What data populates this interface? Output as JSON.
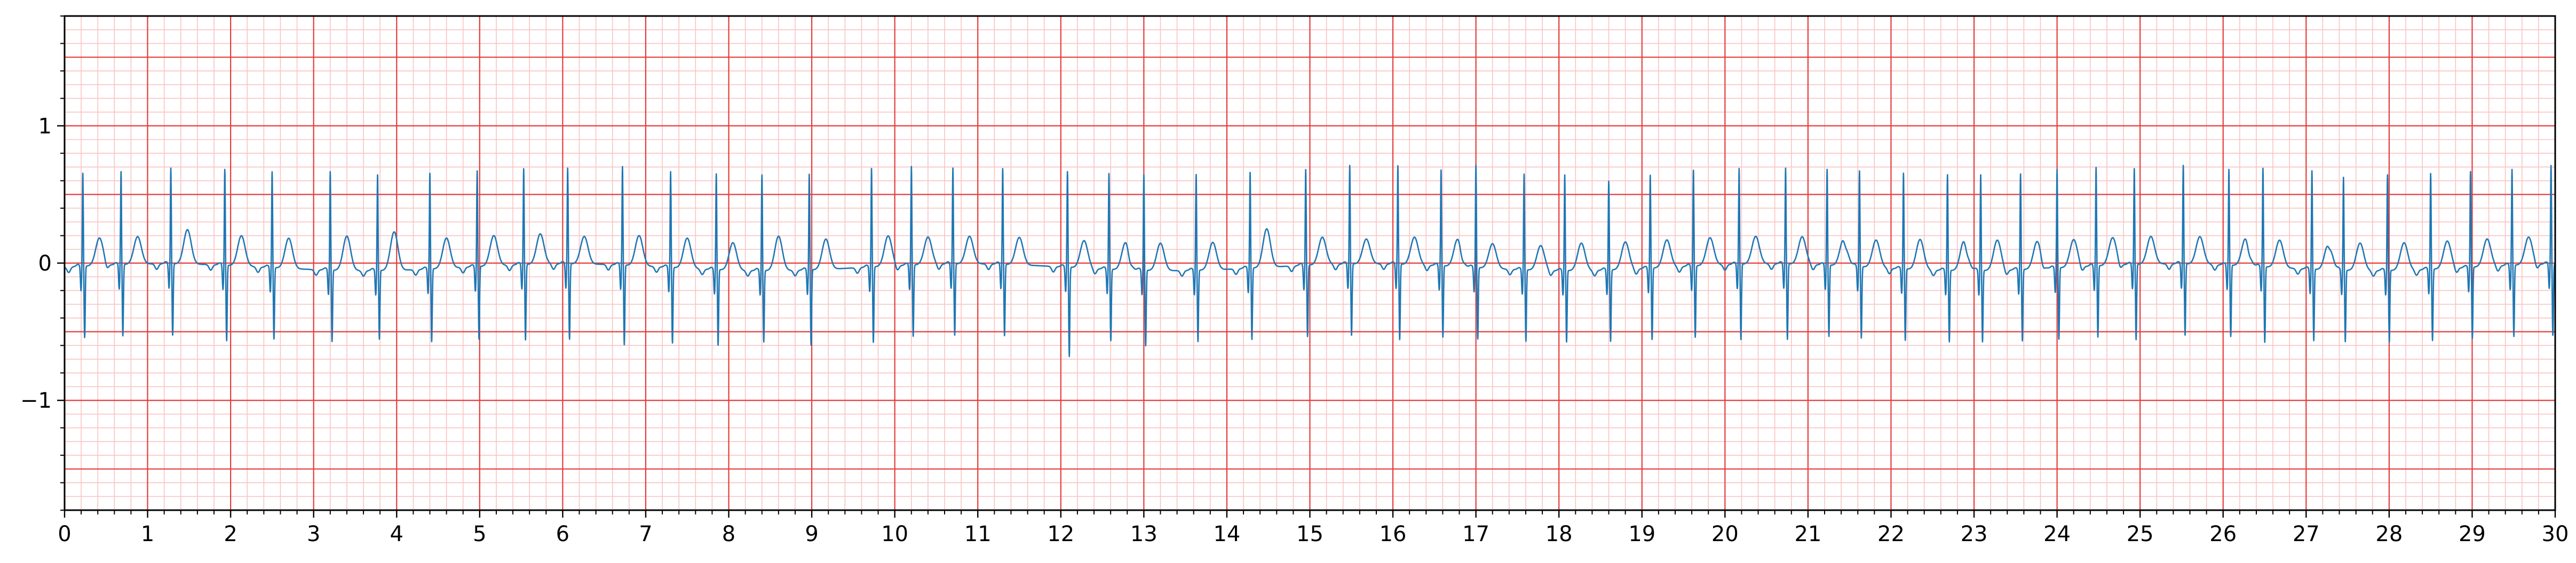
{
  "chart_data": {
    "type": "line",
    "title": "",
    "xlabel": "",
    "ylabel": "",
    "xlim": [
      0,
      30
    ],
    "ylim": [
      -1.8,
      1.8
    ],
    "x_ticks": [
      "0",
      "1",
      "2",
      "3",
      "4",
      "5",
      "6",
      "7",
      "8",
      "9",
      "10",
      "11",
      "12",
      "13",
      "14",
      "15",
      "16",
      "17",
      "18",
      "19",
      "20",
      "21",
      "22",
      "23",
      "24",
      "25",
      "26",
      "27",
      "28",
      "29",
      "30"
    ],
    "y_ticks": [
      {
        "value": 1,
        "label": "1"
      },
      {
        "value": 0,
        "label": "0"
      },
      {
        "value": -1,
        "label": "−1"
      }
    ],
    "grid": {
      "major_x": 1,
      "minor_x": 0.2,
      "major_y": 0.5,
      "minor_y": 0.1
    },
    "colors": {
      "major_grid": "#e63b3b",
      "minor_grid": "#f9c3c3",
      "trace": "#1f77b4"
    },
    "series": [
      {
        "beat_times": [
          0.22,
          0.68,
          1.28,
          1.93,
          2.5,
          3.2,
          3.77,
          4.4,
          4.97,
          5.53,
          6.06,
          6.72,
          7.3,
          7.85,
          8.4,
          8.97,
          9.72,
          10.2,
          10.7,
          11.3,
          12.08,
          12.58,
          13.0,
          13.63,
          14.28,
          14.95,
          15.48,
          16.06,
          16.58,
          17.0,
          17.58,
          18.07,
          18.6,
          19.1,
          19.62,
          20.17,
          20.73,
          21.23,
          21.62,
          22.15,
          22.68,
          23.08,
          23.56,
          24.0,
          24.47,
          24.93,
          25.52,
          26.07,
          26.48,
          27.07,
          27.45,
          27.98,
          28.5,
          28.98,
          29.48,
          29.95
        ],
        "r_peaks": [
          0.68,
          0.68,
          0.7,
          0.7,
          0.7,
          0.72,
          0.7,
          0.7,
          0.7,
          0.7,
          0.7,
          0.72,
          0.7,
          0.7,
          0.7,
          0.7,
          0.72,
          0.72,
          0.7,
          0.7,
          0.7,
          0.7,
          0.7,
          0.7,
          0.7,
          0.7,
          0.72,
          0.72,
          0.7,
          0.75,
          0.7,
          0.7,
          0.65,
          0.68,
          0.7,
          0.7,
          0.7,
          0.7,
          0.7,
          0.7,
          0.7,
          0.7,
          0.7,
          0.72,
          0.72,
          0.7,
          0.72,
          0.7,
          0.72,
          0.72,
          0.68,
          0.7,
          0.7,
          0.7,
          0.7,
          0.72
        ],
        "s_troughs": [
          -0.52,
          -0.52,
          -0.52,
          -0.55,
          -0.52,
          -0.52,
          -0.5,
          -0.53,
          -0.53,
          -0.55,
          -0.55,
          -0.58,
          -0.55,
          -0.55,
          -0.52,
          -0.55,
          -0.55,
          -0.52,
          -0.52,
          -0.52,
          -0.65,
          -0.52,
          -0.55,
          -0.52,
          -0.52,
          -0.52,
          -0.52,
          -0.55,
          -0.52,
          -0.52,
          -0.52,
          -0.52,
          -0.52,
          -0.52,
          -0.52,
          -0.55,
          -0.55,
          -0.52,
          -0.52,
          -0.52,
          -0.52,
          -0.52,
          -0.52,
          -0.52,
          -0.52,
          -0.55,
          -0.52,
          -0.52,
          -0.55,
          -0.52,
          -0.52,
          -0.52,
          -0.52,
          -0.52,
          -0.52,
          -0.52
        ],
        "t_peaks": [
          0.2,
          0.2,
          0.25,
          0.22,
          0.22,
          0.25,
          0.28,
          0.22,
          0.22,
          0.22,
          0.2,
          0.22,
          0.22,
          0.2,
          0.25,
          0.22,
          0.22,
          0.2,
          0.2,
          0.2,
          0.2,
          0.2,
          0.2,
          0.2,
          0.28,
          0.2,
          0.18,
          0.2,
          0.2,
          0.18,
          0.18,
          0.2,
          0.2,
          0.2,
          0.2,
          0.2,
          0.2,
          0.2,
          0.2,
          0.22,
          0.22,
          0.22,
          0.2,
          0.2,
          0.2,
          0.2,
          0.2,
          0.2,
          0.2,
          0.2,
          0.2,
          0.2,
          0.2,
          0.2,
          0.2,
          0.2
        ]
      }
    ]
  }
}
